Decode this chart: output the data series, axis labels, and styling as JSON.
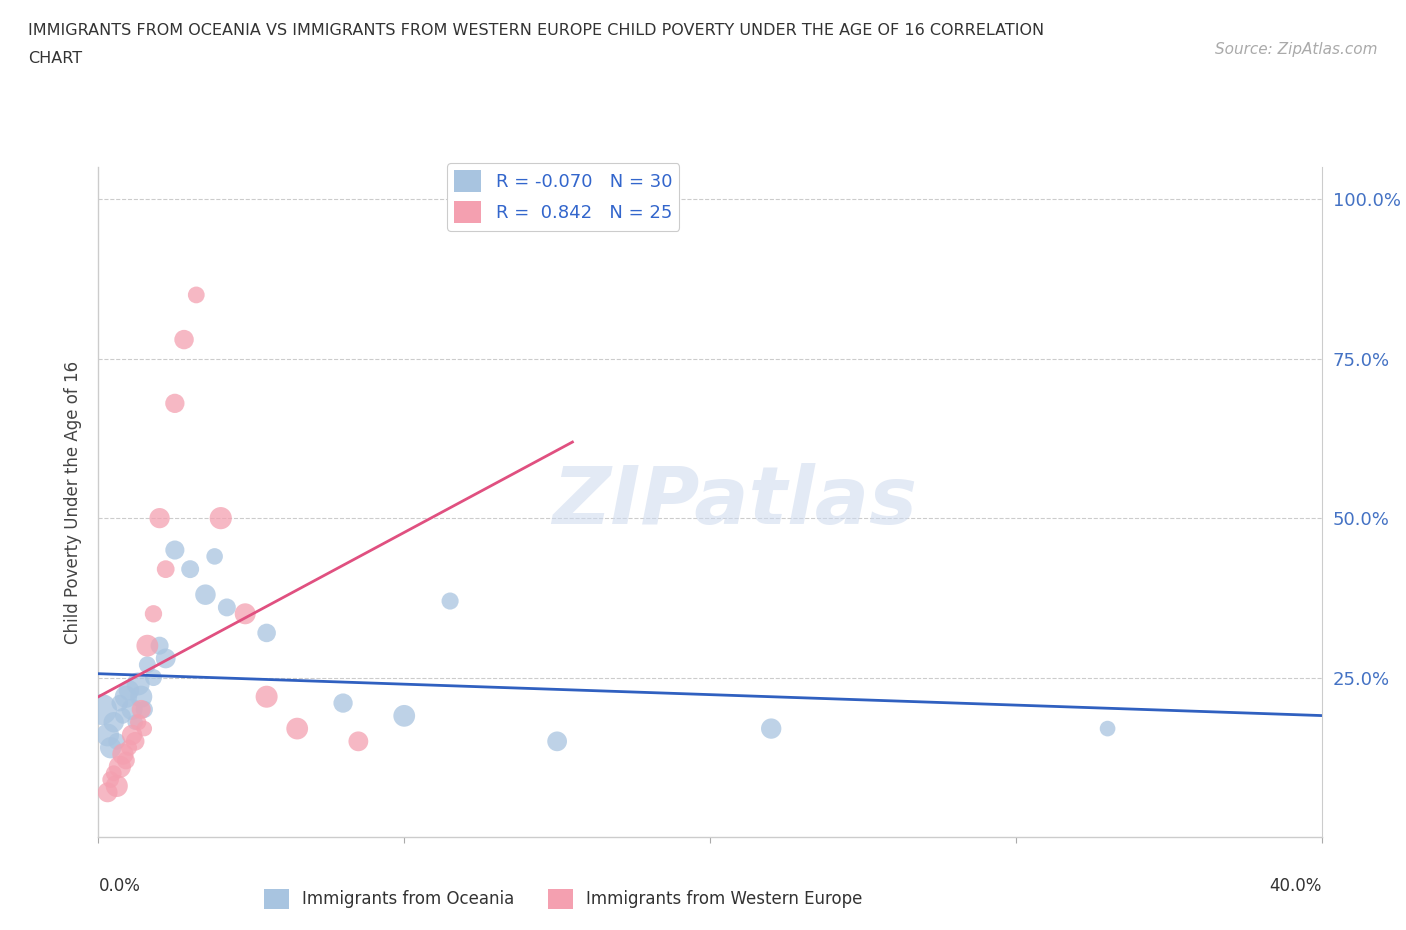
{
  "title_line1": "IMMIGRANTS FROM OCEANIA VS IMMIGRANTS FROM WESTERN EUROPE CHILD POVERTY UNDER THE AGE OF 16 CORRELATION",
  "title_line2": "CHART",
  "source": "Source: ZipAtlas.com",
  "ylabel": "Child Poverty Under the Age of 16",
  "watermark": "ZIPatlas",
  "legend_R_oceania": "-0.070",
  "legend_N_oceania": "30",
  "legend_R_western": "0.842",
  "legend_N_western": "25",
  "color_oceania": "#a8c4e0",
  "color_western_europe": "#f4a0b0",
  "line_color_oceania": "#3060c0",
  "line_color_western": "#e05080",
  "xlim": [
    0.0,
    0.4
  ],
  "ylim": [
    0.0,
    1.05
  ],
  "oceania_x": [
    0.001,
    0.003,
    0.004,
    0.005,
    0.006,
    0.007,
    0.008,
    0.009,
    0.01,
    0.011,
    0.012,
    0.013,
    0.014,
    0.015,
    0.016,
    0.018,
    0.02,
    0.022,
    0.025,
    0.03,
    0.035,
    0.038,
    0.042,
    0.055,
    0.08,
    0.1,
    0.115,
    0.15,
    0.22,
    0.33
  ],
  "oceania_y": [
    0.2,
    0.16,
    0.14,
    0.18,
    0.15,
    0.21,
    0.19,
    0.22,
    0.23,
    0.2,
    0.18,
    0.24,
    0.22,
    0.2,
    0.27,
    0.25,
    0.3,
    0.28,
    0.45,
    0.42,
    0.38,
    0.44,
    0.36,
    0.32,
    0.21,
    0.19,
    0.37,
    0.15,
    0.17,
    0.17
  ],
  "western_x": [
    0.003,
    0.004,
    0.005,
    0.006,
    0.007,
    0.008,
    0.009,
    0.01,
    0.011,
    0.012,
    0.013,
    0.014,
    0.015,
    0.016,
    0.018,
    0.02,
    0.022,
    0.025,
    0.028,
    0.032,
    0.04,
    0.048,
    0.055,
    0.065,
    0.085
  ],
  "western_y": [
    0.07,
    0.09,
    0.1,
    0.08,
    0.11,
    0.13,
    0.12,
    0.14,
    0.16,
    0.15,
    0.18,
    0.2,
    0.17,
    0.3,
    0.35,
    0.5,
    0.42,
    0.68,
    0.78,
    0.85,
    0.5,
    0.35,
    0.22,
    0.17,
    0.15
  ]
}
